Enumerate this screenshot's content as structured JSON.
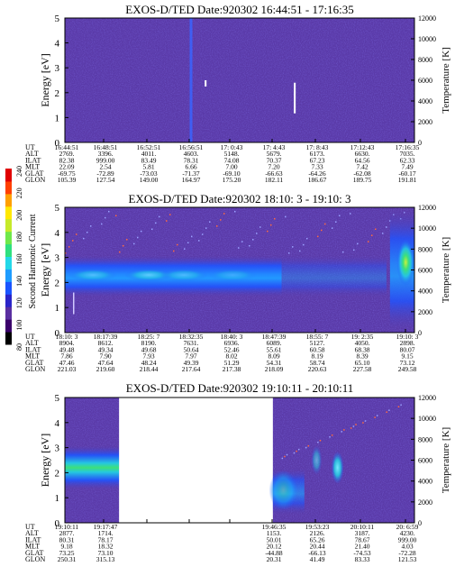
{
  "colors": {
    "background": "#5a3aa8",
    "band_blue": "#1f54ff",
    "band_cyan": "#25c8e0",
    "band_green": "#3de07a"
  },
  "colorbar": {
    "label": "Second Harmonic Current",
    "ticks": [
      "80",
      "100",
      "120",
      "140",
      "160",
      "180",
      "200",
      "220",
      "240"
    ],
    "colors": [
      "#000000",
      "#3a006a",
      "#5a2fa0",
      "#2a24c8",
      "#1a55ff",
      "#1e9cff",
      "#23d8e8",
      "#2fe07f",
      "#6fe84a",
      "#c6ea2a",
      "#ffe800",
      "#ffa000",
      "#ff4000",
      "#e00000"
    ]
  },
  "panels": [
    {
      "title": "EXOS-D/TED  Date:920302  16:44:51 - 17:16:35",
      "ylabel": "Energy [eV]",
      "ylabel2": "Temperature [K]",
      "yticks": [
        "0",
        "1",
        "2",
        "3",
        "4",
        "5"
      ],
      "y2ticks": [
        "0",
        "2000",
        "4000",
        "6000",
        "8000",
        "10000",
        "12000"
      ],
      "orbit_labels": [
        "UT",
        "ALT",
        "ILAT",
        "MLT",
        "GLAT",
        "GLON"
      ],
      "orbit_columns": [
        [
          "16:44:51",
          "2769.",
          "82.38",
          "22.09",
          "-69.75",
          "105.39"
        ],
        [
          "16:48:51",
          "3396.",
          "999.00",
          "2.54",
          "-72.89",
          "127.54"
        ],
        [
          "16:52:51",
          "4011.",
          "83.49",
          "5.81",
          "-73.03",
          "149.00"
        ],
        [
          "16:56:51",
          "4603.",
          "78.31",
          "6.66",
          "-71.37",
          "164.97"
        ],
        [
          "17: 0:43",
          "5148.",
          "74.08",
          "7.00",
          "-69.10",
          "175.20"
        ],
        [
          "17: 4:43",
          "5679.",
          "70.37",
          "7.20",
          "-66.63",
          "182.11"
        ],
        [
          "17: 8:43",
          "6173.",
          "67.23",
          "7.33",
          "-64.26",
          "186.67"
        ],
        [
          "17:12:43",
          "6630.",
          "64.56",
          "7.42",
          "-62.08",
          "189.75"
        ],
        [
          "17:16:35",
          "7035.",
          "62.33",
          "7.49",
          "-60.17",
          "191.81"
        ]
      ]
    },
    {
      "title": "EXOS-D/TED   Date:920302   18:10: 3 - 19:10: 3",
      "ylabel": "Energy [eV]",
      "ylabel2": "Temperature [K]",
      "yticks": [
        "0",
        "1",
        "2",
        "3",
        "4",
        "5"
      ],
      "y2ticks": [
        "0",
        "2000",
        "4000",
        "6000",
        "8000",
        "10000",
        "12000"
      ],
      "orbit_labels": [
        "UT",
        "ALT",
        "ILAT",
        "MLT",
        "GLAT",
        "GLON"
      ],
      "orbit_columns": [
        [
          "18:10: 3",
          "8904.",
          "49.48",
          "7.86",
          "47.46",
          "221.03"
        ],
        [
          "18:17:39",
          "8612.",
          "49.34",
          "7.90",
          "47.64",
          "219.60"
        ],
        [
          "18:25: 7",
          "8190.",
          "49.68",
          "7.93",
          "48.24",
          "218.44"
        ],
        [
          "18:32:35",
          "7631.",
          "50.64",
          "7.97",
          "49.39",
          "217.64"
        ],
        [
          "18:40: 3",
          "6936.",
          "52.46",
          "8.02",
          "51.29",
          "217.38"
        ],
        [
          "18:47:39",
          "6089.",
          "55.61",
          "8.09",
          "54.31",
          "218.09"
        ],
        [
          "18:55: 7",
          "5127.",
          "60.58",
          "8.19",
          "58.74",
          "220.63"
        ],
        [
          "19: 2:35",
          "4050.",
          "68.38",
          "8.39",
          "65.10",
          "227.58"
        ],
        [
          "19:10: 3",
          "2898.",
          "80.07",
          "9.15",
          "73.12",
          "249.58"
        ]
      ]
    },
    {
      "title": "EXOS-D/TED  Date:920302  19:10:11 - 20:10:11",
      "ylabel": "Energy [eV]",
      "ylabel2": "Temperature [K]",
      "yticks": [
        "0",
        "1",
        "2",
        "3",
        "4",
        "5"
      ],
      "y2ticks": [
        "0",
        "2000",
        "4000",
        "6000",
        "8000",
        "10000",
        "12000"
      ],
      "orbit_labels": [
        "UT",
        "ALT",
        "ILAT",
        "MLT",
        "GLAT",
        "GLON"
      ],
      "orbit_columns": [
        [
          "19:10:11",
          "2877.",
          "80.31",
          "9.18",
          "73.25",
          "250.31"
        ],
        [
          "19:17:47",
          "1714.",
          "78.17",
          "18.32",
          "73.10",
          "315.13"
        ],
        [
          "",
          "",
          "",
          "",
          "",
          ""
        ],
        [
          "",
          "",
          "",
          "",
          "",
          ""
        ],
        [
          "",
          "",
          "",
          "",
          "",
          ""
        ],
        [
          "19:46:35",
          "1153.",
          "50.01",
          "20.12",
          "-44.88",
          "20.31"
        ],
        [
          "19:53:23",
          "2126.",
          "65.26",
          "20.44",
          "-66.13",
          "41.49"
        ],
        [
          "20:10:11",
          "3187.",
          "78.67",
          "21.40",
          "-74.53",
          "83.33"
        ],
        [
          "20: 6:59",
          "4230.",
          "999.00",
          "4.03",
          "-72.28",
          "121.53"
        ]
      ]
    }
  ],
  "chart_data": [
    {
      "type": "heatmap",
      "title": "EXOS-D/TED  Date:920302  16:44:51 - 17:16:35",
      "ylabel": "Energy [eV]",
      "ylabel2": "Temperature [K]",
      "ylim": [
        0,
        5
      ],
      "y2lim": [
        0,
        12000
      ],
      "x_start": "16:44:51",
      "x_end": "17:16:35",
      "features": [
        {
          "type": "background",
          "value": "low (~100)"
        },
        {
          "type": "vertical_streak",
          "time": "16:56:51",
          "energy_range": [
            0,
            5
          ]
        },
        {
          "type": "temperature_marks",
          "times_frac": [
            0.35,
            0.71
          ],
          "temperature": [
            6000,
            2500
          ]
        }
      ]
    },
    {
      "type": "heatmap",
      "title": "EXOS-D/TED   Date:920302   18:10: 3 - 19:10: 3",
      "ylabel": "Energy [eV]",
      "ylabel2": "Temperature [K]",
      "ylim": [
        0,
        5
      ],
      "y2lim": [
        0,
        12000
      ],
      "x_start": "18:10: 3",
      "x_end": "19:10: 3",
      "features": [
        {
          "type": "band",
          "energy_center": 2.3,
          "energy_width": 1.4,
          "level": "cyan/blue (~150-170)",
          "fades_after": "18:47:39"
        },
        {
          "type": "burst",
          "time": "19: 8:00",
          "energy_range": [
            0,
            5
          ],
          "level": "green (~180)"
        }
      ]
    },
    {
      "type": "heatmap",
      "title": "EXOS-D/TED  Date:920302  19:10:11 - 20:10:11",
      "ylabel": "Energy [eV]",
      "ylabel2": "Temperature [K]",
      "ylim": [
        0,
        5
      ],
      "y2lim": [
        0,
        12000
      ],
      "x_start": "19:10:11",
      "x_end": "20:10:11",
      "data_gap": [
        "19:17:47",
        "19:46:35"
      ],
      "features": [
        {
          "type": "band",
          "energy_center": 2.2,
          "energy_width": 1.3,
          "level": "green (~185)",
          "before_gap": true
        },
        {
          "type": "burst",
          "time": "19:47:30",
          "energy_center": 1.3,
          "level": "green/yellow (~195)"
        },
        {
          "type": "patch",
          "time": "19:58:00",
          "energy_center": 2.2,
          "level": "cyan (~170)"
        }
      ]
    }
  ]
}
